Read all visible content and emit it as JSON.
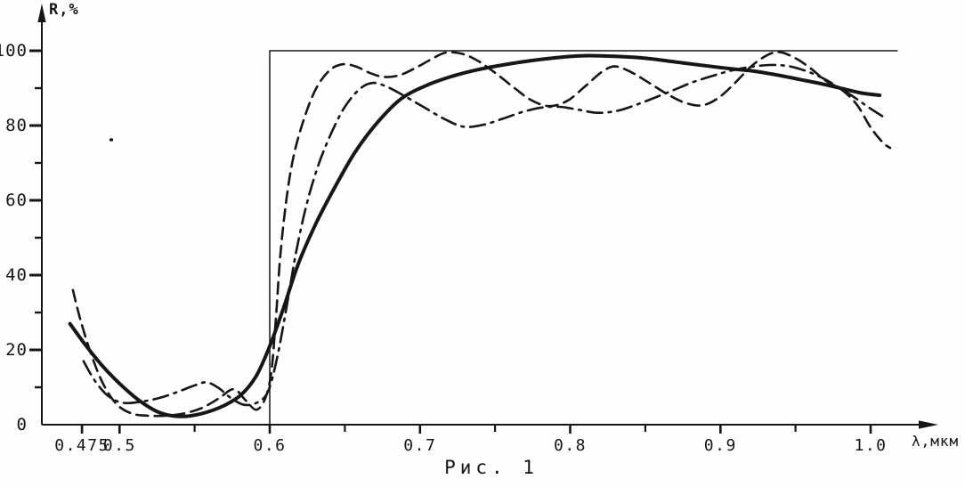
{
  "figure": {
    "caption": "Рис. 1",
    "background": "#fffefe",
    "ink_color": "#161616"
  },
  "chart_data": {
    "type": "line",
    "title": "Рис. 1",
    "xlabel": "λ,мкм",
    "ylabel": "R,%",
    "xlim": [
      0.455,
      1.045
    ],
    "ylim": [
      0,
      110
    ],
    "grid": false,
    "legend": "none",
    "x_axis": {
      "label": "λ,мкм",
      "major_ticks": [
        {
          "value": 0.475,
          "label": "0.475"
        },
        {
          "value": 0.5,
          "label": "0.5"
        },
        {
          "value": 0.6,
          "label": "0.6"
        },
        {
          "value": 0.7,
          "label": "0.7"
        },
        {
          "value": 0.8,
          "label": "0.8"
        },
        {
          "value": 0.9,
          "label": "0.9"
        },
        {
          "value": 1.0,
          "label": "1.0"
        }
      ],
      "minor_ticks": [
        0.55,
        0.65,
        0.75,
        0.85,
        0.95
      ]
    },
    "y_axis": {
      "label": "R,%",
      "major_ticks": [
        {
          "value": 0,
          "label": "0"
        },
        {
          "value": 20,
          "label": "20"
        },
        {
          "value": 40,
          "label": "40"
        },
        {
          "value": 60,
          "label": "60"
        },
        {
          "value": 80,
          "label": "80"
        },
        {
          "value": 100,
          "label": "100"
        }
      ],
      "minor_ticks": [
        10,
        30,
        50,
        70,
        90
      ]
    },
    "series": [
      {
        "name": "ideal-step",
        "style": "thin-solid",
        "smooth": false,
        "points": [
          [
            0.6,
            0
          ],
          [
            0.6,
            100
          ],
          [
            1.018,
            100
          ]
        ]
      },
      {
        "name": "dash-dot",
        "style": "dashdot",
        "smooth": true,
        "points": [
          [
            0.476,
            17
          ],
          [
            0.484,
            11.5
          ],
          [
            0.493,
            7.5
          ],
          [
            0.503,
            5.8
          ],
          [
            0.515,
            6.2
          ],
          [
            0.527,
            7.2
          ],
          [
            0.539,
            8.8
          ],
          [
            0.55,
            10.5
          ],
          [
            0.558,
            11.3
          ],
          [
            0.566,
            9.8
          ],
          [
            0.574,
            7.2
          ],
          [
            0.583,
            5.3
          ],
          [
            0.592,
            6
          ],
          [
            0.599,
            9
          ],
          [
            0.605,
            18
          ],
          [
            0.611,
            31
          ],
          [
            0.617,
            45
          ],
          [
            0.624,
            58
          ],
          [
            0.632,
            69
          ],
          [
            0.641,
            78
          ],
          [
            0.65,
            85
          ],
          [
            0.66,
            89.8
          ],
          [
            0.669,
            91.4
          ],
          [
            0.679,
            90.2
          ],
          [
            0.69,
            87.8
          ],
          [
            0.703,
            84.8
          ],
          [
            0.716,
            81.8
          ],
          [
            0.729,
            79.7
          ],
          [
            0.742,
            80.2
          ],
          [
            0.755,
            81.8
          ],
          [
            0.768,
            83.6
          ],
          [
            0.781,
            84.8
          ],
          [
            0.793,
            85
          ],
          [
            0.806,
            84.2
          ],
          [
            0.818,
            83.4
          ],
          [
            0.831,
            83.9
          ],
          [
            0.843,
            85.4
          ],
          [
            0.856,
            87.4
          ],
          [
            0.869,
            89.5
          ],
          [
            0.881,
            91.5
          ],
          [
            0.894,
            93.2
          ],
          [
            0.907,
            94.7
          ],
          [
            0.92,
            95.7
          ],
          [
            0.933,
            96.2
          ],
          [
            0.945,
            95.9
          ],
          [
            0.957,
            94.6
          ],
          [
            0.968,
            92.7
          ],
          [
            0.979,
            90.2
          ],
          [
            0.99,
            87.3
          ],
          [
            1.0,
            84.5
          ],
          [
            1.009,
            82.2
          ]
        ]
      },
      {
        "name": "dashed",
        "style": "dashed",
        "smooth": true,
        "points": [
          [
            0.469,
            36
          ],
          [
            0.474,
            28
          ],
          [
            0.481,
            19
          ],
          [
            0.489,
            11
          ],
          [
            0.498,
            5.5
          ],
          [
            0.508,
            3
          ],
          [
            0.519,
            2.4
          ],
          [
            0.531,
            2.4
          ],
          [
            0.543,
            3
          ],
          [
            0.555,
            4.5
          ],
          [
            0.566,
            7
          ],
          [
            0.576,
            9.5
          ],
          [
            0.584,
            6.5
          ],
          [
            0.591,
            4
          ],
          [
            0.597,
            7
          ],
          [
            0.601,
            14
          ],
          [
            0.604,
            28
          ],
          [
            0.607,
            45
          ],
          [
            0.611,
            60
          ],
          [
            0.616,
            72
          ],
          [
            0.623,
            82
          ],
          [
            0.631,
            90
          ],
          [
            0.64,
            94.8
          ],
          [
            0.649,
            96.4
          ],
          [
            0.658,
            95.7
          ],
          [
            0.667,
            94
          ],
          [
            0.676,
            93
          ],
          [
            0.686,
            93.4
          ],
          [
            0.696,
            95.2
          ],
          [
            0.707,
            97.6
          ],
          [
            0.717,
            99.5
          ],
          [
            0.728,
            99.2
          ],
          [
            0.739,
            97.2
          ],
          [
            0.751,
            93.8
          ],
          [
            0.763,
            90
          ],
          [
            0.774,
            86.8
          ],
          [
            0.786,
            85.2
          ],
          [
            0.798,
            86.6
          ],
          [
            0.81,
            90.5
          ],
          [
            0.821,
            94.3
          ],
          [
            0.83,
            95.8
          ],
          [
            0.841,
            94.2
          ],
          [
            0.853,
            91.3
          ],
          [
            0.865,
            88.3
          ],
          [
            0.877,
            86
          ],
          [
            0.888,
            85.4
          ],
          [
            0.899,
            87.5
          ],
          [
            0.91,
            91.5
          ],
          [
            0.921,
            96
          ],
          [
            0.932,
            99
          ],
          [
            0.94,
            99.6
          ],
          [
            0.95,
            98
          ],
          [
            0.96,
            95.3
          ],
          [
            0.97,
            92
          ],
          [
            0.981,
            89.5
          ],
          [
            0.991,
            85.5
          ],
          [
            1.0,
            79.5
          ],
          [
            1.008,
            75.5
          ],
          [
            1.013,
            74
          ]
        ]
      },
      {
        "name": "solid-thick",
        "style": "thick-solid",
        "smooth": true,
        "points": [
          [
            0.467,
            27
          ],
          [
            0.477,
            21.5
          ],
          [
            0.488,
            16
          ],
          [
            0.5,
            11
          ],
          [
            0.513,
            6.5
          ],
          [
            0.527,
            3.2
          ],
          [
            0.541,
            2.2
          ],
          [
            0.555,
            3
          ],
          [
            0.569,
            5
          ],
          [
            0.581,
            8
          ],
          [
            0.591,
            13
          ],
          [
            0.6,
            21
          ],
          [
            0.609,
            31
          ],
          [
            0.619,
            43
          ],
          [
            0.631,
            54
          ],
          [
            0.644,
            64
          ],
          [
            0.657,
            73
          ],
          [
            0.671,
            80.5
          ],
          [
            0.687,
            87
          ],
          [
            0.703,
            90.5
          ],
          [
            0.72,
            93
          ],
          [
            0.737,
            94.8
          ],
          [
            0.755,
            96.2
          ],
          [
            0.775,
            97.4
          ],
          [
            0.795,
            98.3
          ],
          [
            0.812,
            98.7
          ],
          [
            0.83,
            98.5
          ],
          [
            0.85,
            98
          ],
          [
            0.87,
            97
          ],
          [
            0.89,
            96
          ],
          [
            0.907,
            95.2
          ],
          [
            0.923,
            94.5
          ],
          [
            0.938,
            93.5
          ],
          [
            0.953,
            92.3
          ],
          [
            0.967,
            91.2
          ],
          [
            0.981,
            89.9
          ],
          [
            0.994,
            88.7
          ],
          [
            1.006,
            88.1
          ]
        ]
      }
    ]
  }
}
